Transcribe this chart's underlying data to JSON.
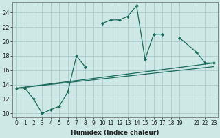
{
  "xlabel": "Humidex (Indice chaleur)",
  "ylabel": "",
  "background_color": "#cde8e5",
  "grid_color": "#aaccca",
  "line_color": "#1a6b5a",
  "xlim": [
    0,
    23
  ],
  "ylim": [
    9.5,
    25.5
  ],
  "xticks": [
    0,
    1,
    2,
    3,
    4,
    5,
    6,
    7,
    8,
    9,
    10,
    11,
    12,
    13,
    14,
    15,
    16,
    17,
    18,
    19,
    21,
    22,
    23
  ],
  "yticks": [
    10,
    12,
    14,
    16,
    18,
    20,
    22,
    24
  ],
  "series0_x": [
    0,
    1,
    2,
    3,
    4,
    5,
    6,
    7,
    8,
    10,
    11,
    12,
    13,
    14,
    15,
    16,
    17,
    19,
    21,
    22,
    23
  ],
  "series0_y": [
    13.5,
    13.5,
    12.0,
    10.0,
    10.5,
    11.0,
    13.0,
    18.0,
    16.5,
    22.5,
    23.0,
    23.0,
    23.5,
    25.0,
    17.5,
    21.0,
    21.0,
    20.5,
    18.5,
    17.0,
    17.0
  ],
  "series0_breaks_after": [
    8,
    17
  ],
  "line1_x": [
    0,
    23
  ],
  "line1_y": [
    13.5,
    17.0
  ],
  "line2_x": [
    0,
    23
  ],
  "line2_y": [
    13.5,
    16.5
  ]
}
